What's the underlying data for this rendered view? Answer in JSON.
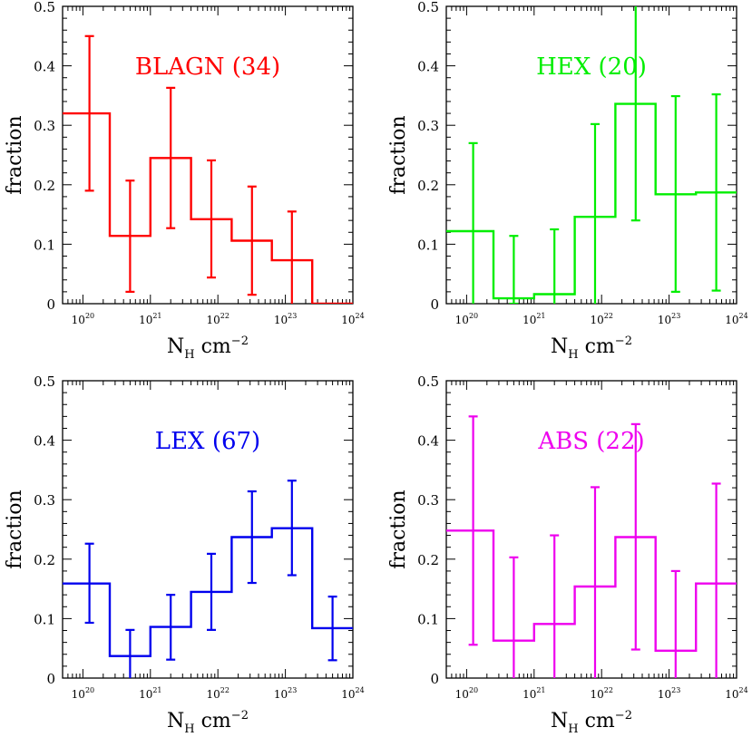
{
  "chart_data": [
    {
      "type": "histogram",
      "title": "BLAGN (34)",
      "color": "#ff0000",
      "xlabel": "N_H cm^-2",
      "ylabel": "fraction",
      "xscale": "log",
      "xlim": [
        5e+19,
        1e+24
      ],
      "ylim": [
        0,
        0.5
      ],
      "yticks": [
        "0",
        "0.1",
        "0.2",
        "0.3",
        "0.4",
        "0.5"
      ],
      "xticks": [
        {
          "base": "10",
          "exp": "20"
        },
        {
          "base": "10",
          "exp": "21"
        },
        {
          "base": "10",
          "exp": "22"
        },
        {
          "base": "10",
          "exp": "23"
        },
        {
          "base": "10",
          "exp": "24"
        }
      ],
      "bins": [
        {
          "lo": 5e+19,
          "hi": 2.5e+20,
          "y": 0.32,
          "err_x": 1.25e+20,
          "err_lo": 0.19,
          "err_hi": 0.45
        },
        {
          "lo": 2.5e+20,
          "hi": 1e+21,
          "y": 0.114,
          "err_x": 5e+20,
          "err_lo": 0.02,
          "err_hi": 0.207
        },
        {
          "lo": 1e+21,
          "hi": 4e+21,
          "y": 0.245,
          "err_x": 2e+21,
          "err_lo": 0.127,
          "err_hi": 0.363
        },
        {
          "lo": 4e+21,
          "hi": 1.6e+22,
          "y": 0.142,
          "err_x": 8e+21,
          "err_lo": 0.044,
          "err_hi": 0.241
        },
        {
          "lo": 1.6e+22,
          "hi": 6.3e+22,
          "y": 0.106,
          "err_x": 3.2e+22,
          "err_lo": 0.015,
          "err_hi": 0.197
        },
        {
          "lo": 6.3e+22,
          "hi": 2.5e+23,
          "y": 0.073,
          "err_x": 1.25e+23,
          "err_lo": -0.01,
          "err_hi": 0.155
        },
        {
          "lo": 2.5e+23,
          "hi": 1e+24,
          "y": 0.0
        }
      ]
    },
    {
      "type": "histogram",
      "title": "HEX (20)",
      "color": "#00ee00",
      "xlabel": "N_H cm^-2",
      "ylabel": "fraction",
      "xscale": "log",
      "xlim": [
        5e+19,
        1e+24
      ],
      "ylim": [
        0,
        0.5
      ],
      "yticks": [
        "0",
        "0.1",
        "0.2",
        "0.3",
        "0.4",
        "0.5"
      ],
      "xticks": [
        {
          "base": "10",
          "exp": "20"
        },
        {
          "base": "10",
          "exp": "21"
        },
        {
          "base": "10",
          "exp": "22"
        },
        {
          "base": "10",
          "exp": "23"
        },
        {
          "base": "10",
          "exp": "24"
        }
      ],
      "bins": [
        {
          "lo": 5e+19,
          "hi": 2.5e+20,
          "y": 0.122,
          "err_x": 1.25e+20,
          "err_lo": -0.02,
          "err_hi": 0.27
        },
        {
          "lo": 2.5e+20,
          "hi": 1e+21,
          "y": 0.009,
          "err_x": 5e+20,
          "err_lo": 0.0,
          "err_hi": 0.114
        },
        {
          "lo": 1e+21,
          "hi": 4e+21,
          "y": 0.016,
          "err_x": 2e+21,
          "err_lo": -0.01,
          "err_hi": 0.125
        },
        {
          "lo": 4e+21,
          "hi": 1.6e+22,
          "y": 0.146,
          "err_x": 8e+21,
          "err_lo": -0.01,
          "err_hi": 0.302
        },
        {
          "lo": 1.6e+22,
          "hi": 6.3e+22,
          "y": 0.336,
          "err_x": 3.2e+22,
          "err_lo": 0.14,
          "err_hi": 0.53
        },
        {
          "lo": 6.3e+22,
          "hi": 2.5e+23,
          "y": 0.184,
          "err_x": 1.25e+23,
          "err_lo": 0.02,
          "err_hi": 0.349
        },
        {
          "lo": 2.5e+23,
          "hi": 1e+24,
          "y": 0.187,
          "err_x": 5e+23,
          "err_lo": 0.022,
          "err_hi": 0.352
        }
      ]
    },
    {
      "type": "histogram",
      "title": "LEX (67)",
      "color": "#0000ee",
      "xlabel": "N_H cm^-2",
      "ylabel": "fraction",
      "xscale": "log",
      "xlim": [
        5e+19,
        1e+24
      ],
      "ylim": [
        0,
        0.5
      ],
      "yticks": [
        "0",
        "0.1",
        "0.2",
        "0.3",
        "0.4",
        "0.5"
      ],
      "xticks": [
        {
          "base": "10",
          "exp": "20"
        },
        {
          "base": "10",
          "exp": "21"
        },
        {
          "base": "10",
          "exp": "22"
        },
        {
          "base": "10",
          "exp": "23"
        },
        {
          "base": "10",
          "exp": "24"
        }
      ],
      "bins": [
        {
          "lo": 5e+19,
          "hi": 2.5e+20,
          "y": 0.159,
          "err_x": 1.25e+20,
          "err_lo": 0.093,
          "err_hi": 0.226
        },
        {
          "lo": 2.5e+20,
          "hi": 1e+21,
          "y": 0.037,
          "err_x": 5e+20,
          "err_lo": -0.01,
          "err_hi": 0.081
        },
        {
          "lo": 1e+21,
          "hi": 4e+21,
          "y": 0.086,
          "err_x": 2e+21,
          "err_lo": 0.031,
          "err_hi": 0.14
        },
        {
          "lo": 4e+21,
          "hi": 1.6e+22,
          "y": 0.145,
          "err_x": 8e+21,
          "err_lo": 0.081,
          "err_hi": 0.209
        },
        {
          "lo": 1.6e+22,
          "hi": 6.3e+22,
          "y": 0.237,
          "err_x": 3.2e+22,
          "err_lo": 0.16,
          "err_hi": 0.314
        },
        {
          "lo": 6.3e+22,
          "hi": 2.5e+23,
          "y": 0.252,
          "err_x": 1.25e+23,
          "err_lo": 0.173,
          "err_hi": 0.332
        },
        {
          "lo": 2.5e+23,
          "hi": 1e+24,
          "y": 0.084,
          "err_x": 5e+23,
          "err_lo": 0.03,
          "err_hi": 0.137
        }
      ]
    },
    {
      "type": "histogram",
      "title": "ABS (22)",
      "color": "#ee00ee",
      "xlabel": "N_H cm^-2",
      "ylabel": "fraction",
      "xscale": "log",
      "xlim": [
        5e+19,
        1e+24
      ],
      "ylim": [
        0,
        0.5
      ],
      "yticks": [
        "0",
        "0.1",
        "0.2",
        "0.3",
        "0.4",
        "0.5"
      ],
      "xticks": [
        {
          "base": "10",
          "exp": "20"
        },
        {
          "base": "10",
          "exp": "21"
        },
        {
          "base": "10",
          "exp": "22"
        },
        {
          "base": "10",
          "exp": "23"
        },
        {
          "base": "10",
          "exp": "24"
        }
      ],
      "bins": [
        {
          "lo": 5e+19,
          "hi": 2.5e+20,
          "y": 0.248,
          "err_x": 1.25e+20,
          "err_lo": 0.056,
          "err_hi": 0.44
        },
        {
          "lo": 2.5e+20,
          "hi": 1e+21,
          "y": 0.063,
          "err_x": 5e+20,
          "err_lo": -0.02,
          "err_hi": 0.203
        },
        {
          "lo": 1e+21,
          "hi": 4e+21,
          "y": 0.091,
          "err_x": 2e+21,
          "err_lo": -0.02,
          "err_hi": 0.24
        },
        {
          "lo": 4e+21,
          "hi": 1.6e+22,
          "y": 0.154,
          "err_x": 8e+21,
          "err_lo": -0.01,
          "err_hi": 0.321
        },
        {
          "lo": 1.6e+22,
          "hi": 6.3e+22,
          "y": 0.237,
          "err_x": 3.2e+22,
          "err_lo": 0.048,
          "err_hi": 0.427
        },
        {
          "lo": 6.3e+22,
          "hi": 2.5e+23,
          "y": 0.046,
          "err_x": 1.25e+23,
          "err_lo": -0.01,
          "err_hi": 0.18
        },
        {
          "lo": 2.5e+23,
          "hi": 1e+24,
          "y": 0.159,
          "err_x": 5e+23,
          "err_lo": -0.01,
          "err_hi": 0.327
        }
      ]
    }
  ]
}
